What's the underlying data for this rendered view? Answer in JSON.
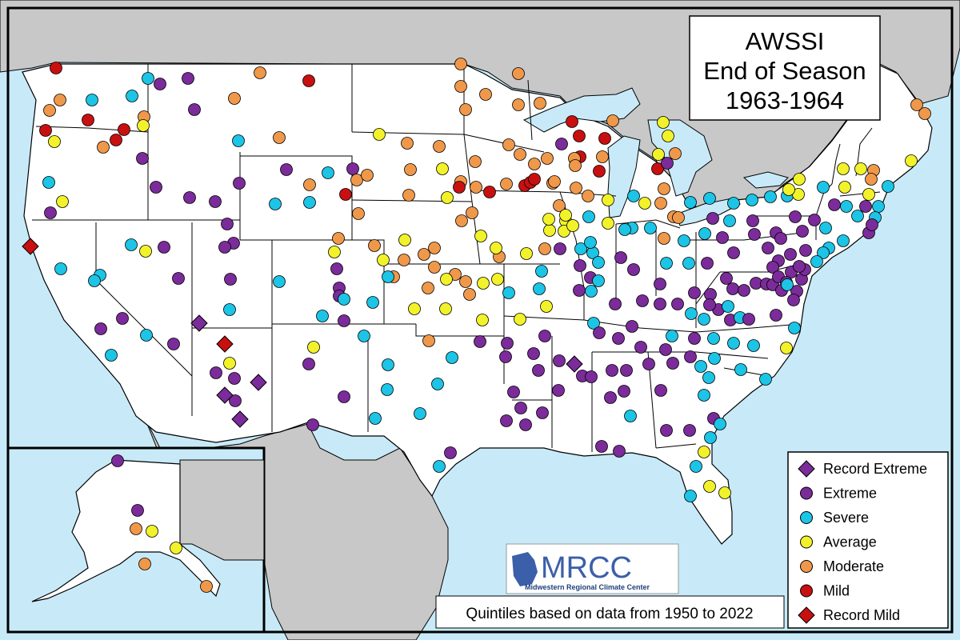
{
  "title": {
    "line1": "AWSSI",
    "line2": "End of Season",
    "line3": "1963-1964"
  },
  "colors": {
    "ocean": "#c8eaf8",
    "land_other": "#c8c8c8",
    "land_us": "#ffffff",
    "lakes": "#c8eaf8",
    "record_extreme": "#7b2b9a",
    "extreme": "#7b2b9a",
    "severe": "#1cc4e6",
    "average": "#f2f22a",
    "moderate": "#f0984a",
    "mild": "#c81010",
    "record_mild": "#c81010"
  },
  "legend": {
    "items": [
      {
        "key": "record_extreme",
        "label": "Record Extreme",
        "shape": "diamond"
      },
      {
        "key": "extreme",
        "label": "Extreme",
        "shape": "circle"
      },
      {
        "key": "severe",
        "label": "Severe",
        "shape": "circle"
      },
      {
        "key": "average",
        "label": "Average",
        "shape": "circle"
      },
      {
        "key": "moderate",
        "label": "Moderate",
        "shape": "circle"
      },
      {
        "key": "mild",
        "label": "Mild",
        "shape": "circle"
      },
      {
        "key": "record_mild",
        "label": "Record Mild",
        "shape": "diamond"
      }
    ]
  },
  "footnote": "Quintiles based on data from 1950 to 2022",
  "logo": {
    "text": "MRCC",
    "subtitle": "Midwestern Regional Climate Center"
  }
}
